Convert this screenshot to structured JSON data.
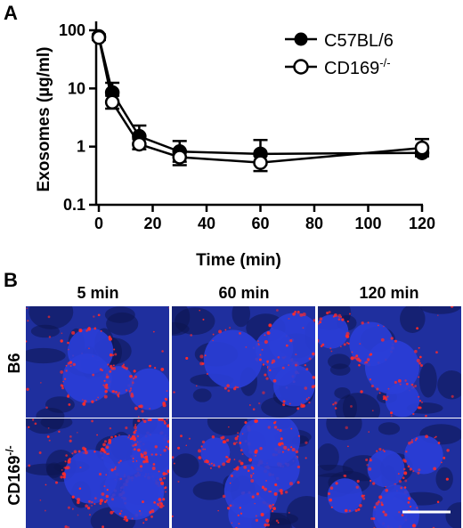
{
  "panel_a": {
    "label": "A"
  },
  "panel_b": {
    "label": "B",
    "columns": [
      "5 min",
      "60 min",
      "120 min"
    ],
    "rows": [
      {
        "label": "B6",
        "sup": ""
      },
      {
        "label": "CD169",
        "sup": "-/-"
      }
    ],
    "image_tiles": [
      {
        "row": 0,
        "col": 0,
        "red_intensity": 0.45
      },
      {
        "row": 0,
        "col": 1,
        "red_intensity": 0.35
      },
      {
        "row": 0,
        "col": 2,
        "red_intensity": 0.35
      },
      {
        "row": 1,
        "col": 0,
        "red_intensity": 0.9
      },
      {
        "row": 1,
        "col": 1,
        "red_intensity": 0.6
      },
      {
        "row": 1,
        "col": 2,
        "red_intensity": 0.25
      }
    ],
    "scale_bar": true,
    "colors": {
      "background": "#1f2f9e",
      "signal": "#ff2a2a",
      "follicle": "#2a3ed8"
    }
  },
  "chart_data": {
    "type": "line",
    "xlabel": "Time (min)",
    "ylabel": "Exosomes (µg/ml)",
    "x_ticks": [
      "0",
      "20",
      "40",
      "60",
      "80",
      "100",
      "120"
    ],
    "y_ticks": [
      "0.1",
      "1",
      "10",
      "100"
    ],
    "xlim": [
      0,
      120
    ],
    "ylim": [
      0.1,
      100
    ],
    "yscale": "log",
    "legend_position": "top-right",
    "series": [
      {
        "name": "C57BL/6",
        "name_sup": "",
        "marker": "filled-circle",
        "color": "#000000",
        "points": [
          {
            "x": 0,
            "y": 78,
            "err_hi": 85,
            "err_lo": 70
          },
          {
            "x": 5,
            "y": 8.5,
            "err_hi": 12.5,
            "err_lo": 6.0
          },
          {
            "x": 15,
            "y": 1.5,
            "err_hi": 2.3,
            "err_lo": 1.1
          },
          {
            "x": 30,
            "y": 0.82,
            "err_hi": 1.25,
            "err_lo": 0.55
          },
          {
            "x": 60,
            "y": 0.75,
            "err_hi": 1.3,
            "err_lo": 0.5
          },
          {
            "x": 120,
            "y": 0.78,
            "err_hi": 0.95,
            "err_lo": 0.68
          }
        ]
      },
      {
        "name": "CD169",
        "name_sup": "-/-",
        "marker": "open-circle",
        "color": "#000000",
        "points": [
          {
            "x": 0,
            "y": 75,
            "err_hi": 82,
            "err_lo": 68
          },
          {
            "x": 5,
            "y": 5.8,
            "err_hi": 7.5,
            "err_lo": 4.5
          },
          {
            "x": 15,
            "y": 1.1,
            "err_hi": 1.35,
            "err_lo": 0.9
          },
          {
            "x": 30,
            "y": 0.66,
            "err_hi": 0.85,
            "err_lo": 0.48
          },
          {
            "x": 60,
            "y": 0.53,
            "err_hi": 0.7,
            "err_lo": 0.38
          },
          {
            "x": 120,
            "y": 0.95,
            "err_hi": 1.35,
            "err_lo": 0.7
          }
        ]
      }
    ]
  }
}
